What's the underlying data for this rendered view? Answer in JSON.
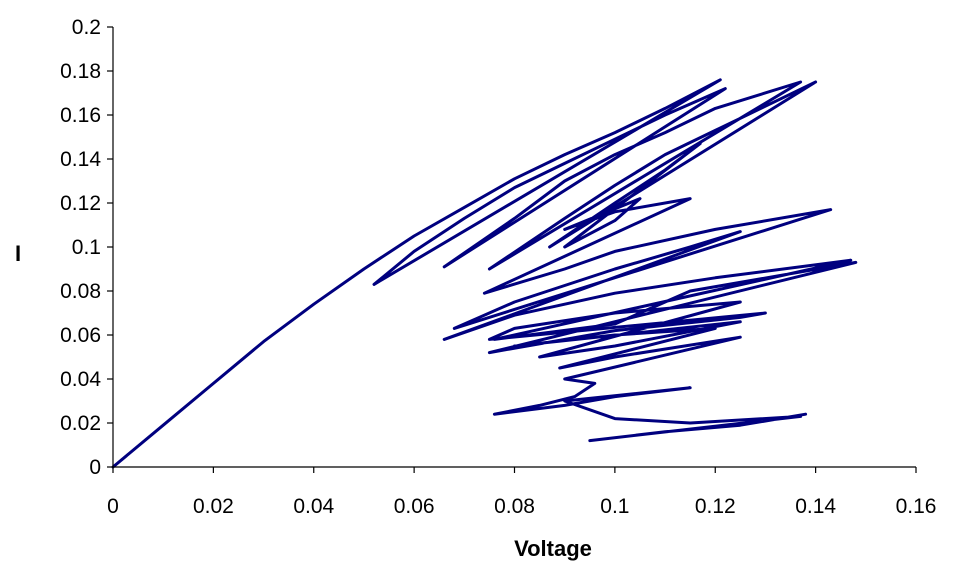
{
  "chart_data": {
    "type": "line",
    "title": "",
    "xlabel": "Voltage",
    "ylabel": "I",
    "xlim": [
      0,
      0.16
    ],
    "ylim": [
      0,
      0.2
    ],
    "x_ticks": [
      "0",
      "0.02",
      "0.04",
      "0.06",
      "0.08",
      "0.1",
      "0.12",
      "0.14",
      "0.16"
    ],
    "y_ticks": [
      "0",
      "0.02",
      "0.04",
      "0.06",
      "0.08",
      "0.1",
      "0.12",
      "0.14",
      "0.16",
      "0.18",
      "0.2"
    ],
    "x_tick_values": [
      0,
      0.02,
      0.04,
      0.06,
      0.08,
      0.1,
      0.12,
      0.14,
      0.16
    ],
    "y_tick_values": [
      0,
      0.02,
      0.04,
      0.06,
      0.08,
      0.1,
      0.12,
      0.14,
      0.16,
      0.18,
      0.2
    ],
    "grid": false,
    "legend": "none",
    "colors": {
      "series": "#00007f",
      "axis": "#000000"
    },
    "series": [
      {
        "values_xy": [
          [
            0,
            0
          ],
          [
            0.01,
            0.019
          ],
          [
            0.02,
            0.038
          ],
          [
            0.03,
            0.057
          ],
          [
            0.04,
            0.074
          ],
          [
            0.05,
            0.09
          ],
          [
            0.06,
            0.105
          ],
          [
            0.07,
            0.118
          ],
          [
            0.08,
            0.131
          ],
          [
            0.09,
            0.142
          ],
          [
            0.1,
            0.152
          ],
          [
            0.11,
            0.163
          ],
          [
            0.121,
            0.176
          ],
          [
            0.052,
            0.083
          ],
          [
            0.06,
            0.098
          ],
          [
            0.07,
            0.113
          ],
          [
            0.08,
            0.127
          ],
          [
            0.09,
            0.138
          ],
          [
            0.1,
            0.149
          ],
          [
            0.11,
            0.16
          ],
          [
            0.122,
            0.172
          ],
          [
            0.066,
            0.091
          ],
          [
            0.08,
            0.113
          ],
          [
            0.09,
            0.13
          ],
          [
            0.1,
            0.142
          ],
          [
            0.11,
            0.152
          ],
          [
            0.12,
            0.163
          ],
          [
            0.137,
            0.175
          ],
          [
            0.075,
            0.09
          ],
          [
            0.09,
            0.113
          ],
          [
            0.1,
            0.128
          ],
          [
            0.11,
            0.142
          ],
          [
            0.12,
            0.153
          ],
          [
            0.13,
            0.164
          ],
          [
            0.14,
            0.175
          ],
          [
            0.087,
            0.1
          ],
          [
            0.1,
            0.12
          ],
          [
            0.11,
            0.135
          ],
          [
            0.117,
            0.147
          ],
          [
            0.09,
            0.1
          ],
          [
            0.1,
            0.112
          ],
          [
            0.105,
            0.122
          ],
          [
            0.09,
            0.108
          ],
          [
            0.1,
            0.116
          ],
          [
            0.115,
            0.122
          ],
          [
            0.074,
            0.079
          ],
          [
            0.09,
            0.09
          ],
          [
            0.1,
            0.098
          ],
          [
            0.12,
            0.108
          ],
          [
            0.143,
            0.117
          ],
          [
            0.068,
            0.063
          ],
          [
            0.08,
            0.075
          ],
          [
            0.1,
            0.09
          ],
          [
            0.115,
            0.1
          ],
          [
            0.125,
            0.107
          ],
          [
            0.066,
            0.058
          ],
          [
            0.08,
            0.069
          ],
          [
            0.1,
            0.079
          ],
          [
            0.12,
            0.086
          ],
          [
            0.147,
            0.094
          ],
          [
            0.076,
            0.058
          ],
          [
            0.1,
            0.065
          ],
          [
            0.115,
            0.08
          ],
          [
            0.148,
            0.093
          ],
          [
            0.075,
            0.052
          ],
          [
            0.1,
            0.062
          ],
          [
            0.125,
            0.068
          ],
          [
            0.13,
            0.07
          ],
          [
            0.075,
            0.058
          ],
          [
            0.08,
            0.063
          ],
          [
            0.1,
            0.07
          ],
          [
            0.125,
            0.075
          ],
          [
            0.085,
            0.05
          ],
          [
            0.1,
            0.055
          ],
          [
            0.125,
            0.066
          ],
          [
            0.08,
            0.055
          ],
          [
            0.1,
            0.06
          ],
          [
            0.12,
            0.063
          ],
          [
            0.089,
            0.045
          ],
          [
            0.1,
            0.05
          ],
          [
            0.125,
            0.059
          ],
          [
            0.09,
            0.04
          ],
          [
            0.096,
            0.038
          ],
          [
            0.092,
            0.032
          ],
          [
            0.085,
            0.028
          ],
          [
            0.076,
            0.024
          ],
          [
            0.09,
            0.028
          ],
          [
            0.1,
            0.032
          ],
          [
            0.115,
            0.036
          ],
          [
            0.09,
            0.03
          ],
          [
            0.1,
            0.022
          ],
          [
            0.115,
            0.02
          ],
          [
            0.137,
            0.023
          ],
          [
            0.095,
            0.012
          ],
          [
            0.11,
            0.016
          ],
          [
            0.125,
            0.019
          ],
          [
            0.138,
            0.024
          ]
        ]
      }
    ]
  }
}
